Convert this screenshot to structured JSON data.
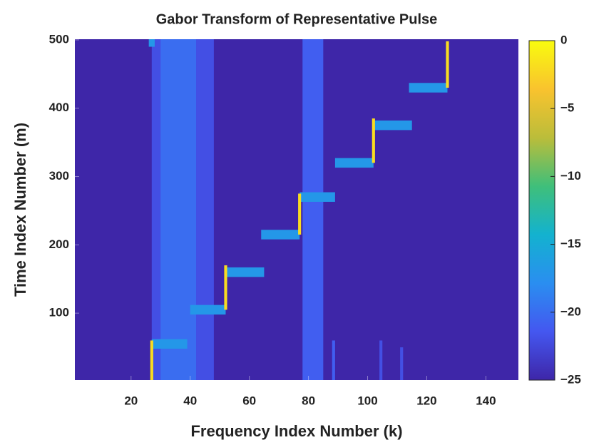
{
  "chart_data": {
    "type": "heatmap",
    "title": "Gabor Transform of Representative Pulse",
    "x_label": "Frequency Index Number (k)",
    "y_label": "Time Index Number (m)",
    "xlim": [
      1,
      151
    ],
    "xticks": [
      20,
      40,
      60,
      80,
      100,
      120,
      140
    ],
    "ylim": [
      2,
      501
    ],
    "yticks": [
      100,
      200,
      300,
      400,
      500
    ],
    "clim": [
      -25,
      0
    ],
    "cticks": [
      {
        "value": -25,
        "label": "−25"
      },
      {
        "value": -20,
        "label": "−20"
      },
      {
        "value": -15,
        "label": "−15"
      },
      {
        "value": -10,
        "label": "−10"
      },
      {
        "value": -5,
        "label": "−5"
      },
      0
    ],
    "colormap": [
      "#3e26a8",
      "#4457f0",
      "#2a8ef0",
      "#13b2cf",
      "#3fbf7a",
      "#bbbd3a",
      "#f9c32e",
      "#f9fb0e"
    ],
    "cells": [
      {
        "k_range": [
          27,
          48
        ],
        "m_range": [
          2,
          501
        ],
        "value": -22
      },
      {
        "k_range": [
          30,
          42
        ],
        "m_range": [
          2,
          501
        ],
        "value": -20
      },
      {
        "k_range": [
          78,
          85
        ],
        "m_range": [
          2,
          501
        ],
        "value": -21
      },
      {
        "k_range": [
          88,
          89
        ],
        "m_range": [
          2,
          60
        ],
        "value": -21
      },
      {
        "k_range": [
          104,
          105
        ],
        "m_range": [
          2,
          60
        ],
        "value": -22
      },
      {
        "k_range": [
          111,
          112
        ],
        "m_range": [
          2,
          50
        ],
        "value": -22
      },
      {
        "k_range": [
          26,
          28
        ],
        "m_range": [
          490,
          501
        ],
        "value": -17
      },
      {
        "k_range": [
          27,
          39
        ],
        "m_range": [
          48,
          62
        ],
        "value": -17
      },
      {
        "k_range": [
          40,
          52
        ],
        "m_range": [
          98,
          112
        ],
        "value": -17
      },
      {
        "k_range": [
          52,
          65
        ],
        "m_range": [
          153,
          167
        ],
        "value": -17
      },
      {
        "k_range": [
          64,
          77
        ],
        "m_range": [
          208,
          222
        ],
        "value": -17
      },
      {
        "k_range": [
          77,
          89
        ],
        "m_range": [
          263,
          277
        ],
        "value": -17
      },
      {
        "k_range": [
          89,
          102
        ],
        "m_range": [
          313,
          327
        ],
        "value": -17
      },
      {
        "k_range": [
          102,
          115
        ],
        "m_range": [
          368,
          382
        ],
        "value": -17
      },
      {
        "k_range": [
          114,
          127
        ],
        "m_range": [
          423,
          437
        ],
        "value": -17
      },
      {
        "k_range": [
          26.5,
          27.5
        ],
        "m_range": [
          2,
          60
        ],
        "value": -2
      },
      {
        "k_range": [
          51.5,
          52.5
        ],
        "m_range": [
          105,
          170
        ],
        "value": -2
      },
      {
        "k_range": [
          76.5,
          77.5
        ],
        "m_range": [
          215,
          275
        ],
        "value": -2
      },
      {
        "k_range": [
          101.5,
          102.5
        ],
        "m_range": [
          320,
          385
        ],
        "value": -2
      },
      {
        "k_range": [
          126.5,
          127.5
        ],
        "m_range": [
          430,
          498
        ],
        "value": -2
      }
    ]
  }
}
